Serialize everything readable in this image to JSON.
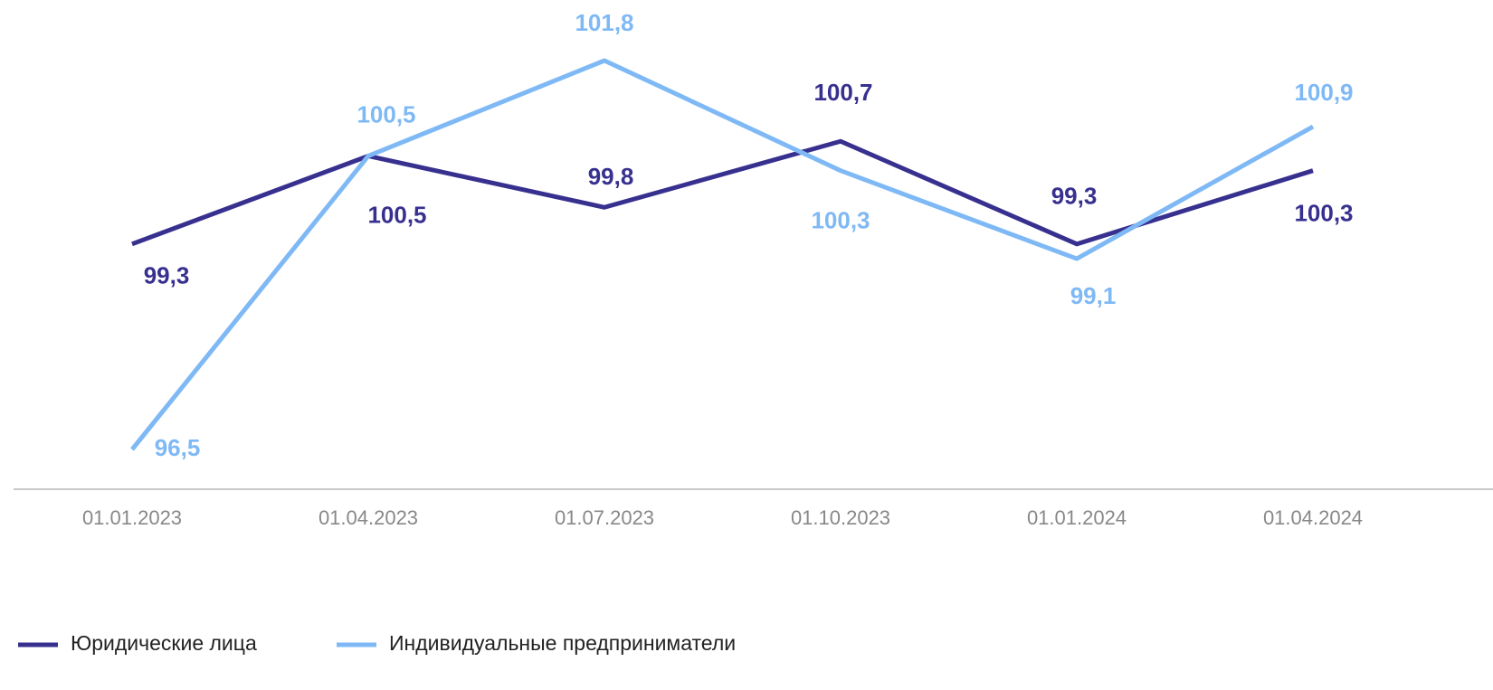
{
  "chart_data": {
    "type": "line",
    "categories": [
      "01.01.2023",
      "01.04.2023",
      "01.07.2023",
      "01.10.2023",
      "01.01.2024",
      "01.04.2024"
    ],
    "series": [
      {
        "name": "Юридические лица",
        "color": "#37308f",
        "values": [
          99.3,
          100.5,
          99.8,
          100.7,
          99.3,
          100.3
        ],
        "value_labels": [
          "99,3",
          "100,5",
          "99,8",
          "100,7",
          "99,3",
          "100,3"
        ]
      },
      {
        "name": "Индивидуальные предприниматели",
        "color": "#7fb9f5",
        "values": [
          96.5,
          100.5,
          101.8,
          100.3,
          99.1,
          100.9
        ],
        "value_labels": [
          "96,5",
          "100,5",
          "101,8",
          "100,3",
          "99,1",
          "100,9"
        ]
      }
    ]
  }
}
